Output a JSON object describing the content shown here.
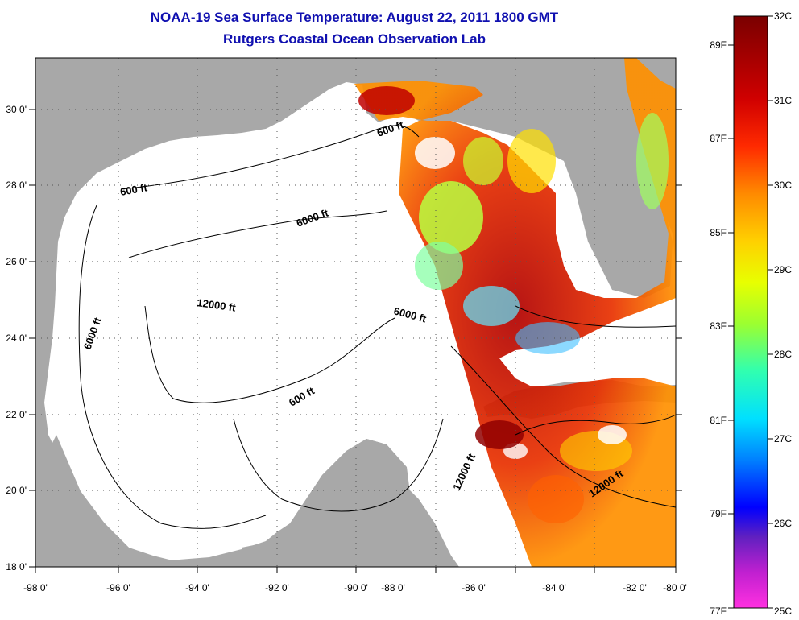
{
  "title": {
    "line1": "NOAA-19 Sea Surface Temperature:  August 22, 2011 1800 GMT",
    "line2": "Rutgers Coastal Ocean Observation Lab"
  },
  "axes": {
    "lon_labels": [
      "-98 0'",
      "-96 0'",
      "-94 0'",
      "-92 0'",
      "-90 0'",
      "-88 0'",
      "-86 0'",
      "-84 0'",
      "-82 0'",
      "-80 0'"
    ],
    "lat_labels": [
      "18 0'",
      "20 0'",
      "22 0'",
      "24 0'",
      "26 0'",
      "28 0'",
      "30 0'"
    ]
  },
  "contour_labels": [
    "600 ft",
    "600 ft",
    "6000 ft",
    "6000 ft",
    "12000 ft",
    "6000 ft",
    "600 ft",
    "12000 ft",
    "12000 ft"
  ],
  "colorbar": {
    "celsius": [
      "32C",
      "31C",
      "30C",
      "29C",
      "28C",
      "27C",
      "26C",
      "25C"
    ],
    "fahrenheit": [
      "89F",
      "87F",
      "85F",
      "83F",
      "81F",
      "79F",
      "77F"
    ]
  },
  "colors": {
    "land": "#a8a8a8",
    "title": "#1010b0",
    "grid": "#555555"
  }
}
